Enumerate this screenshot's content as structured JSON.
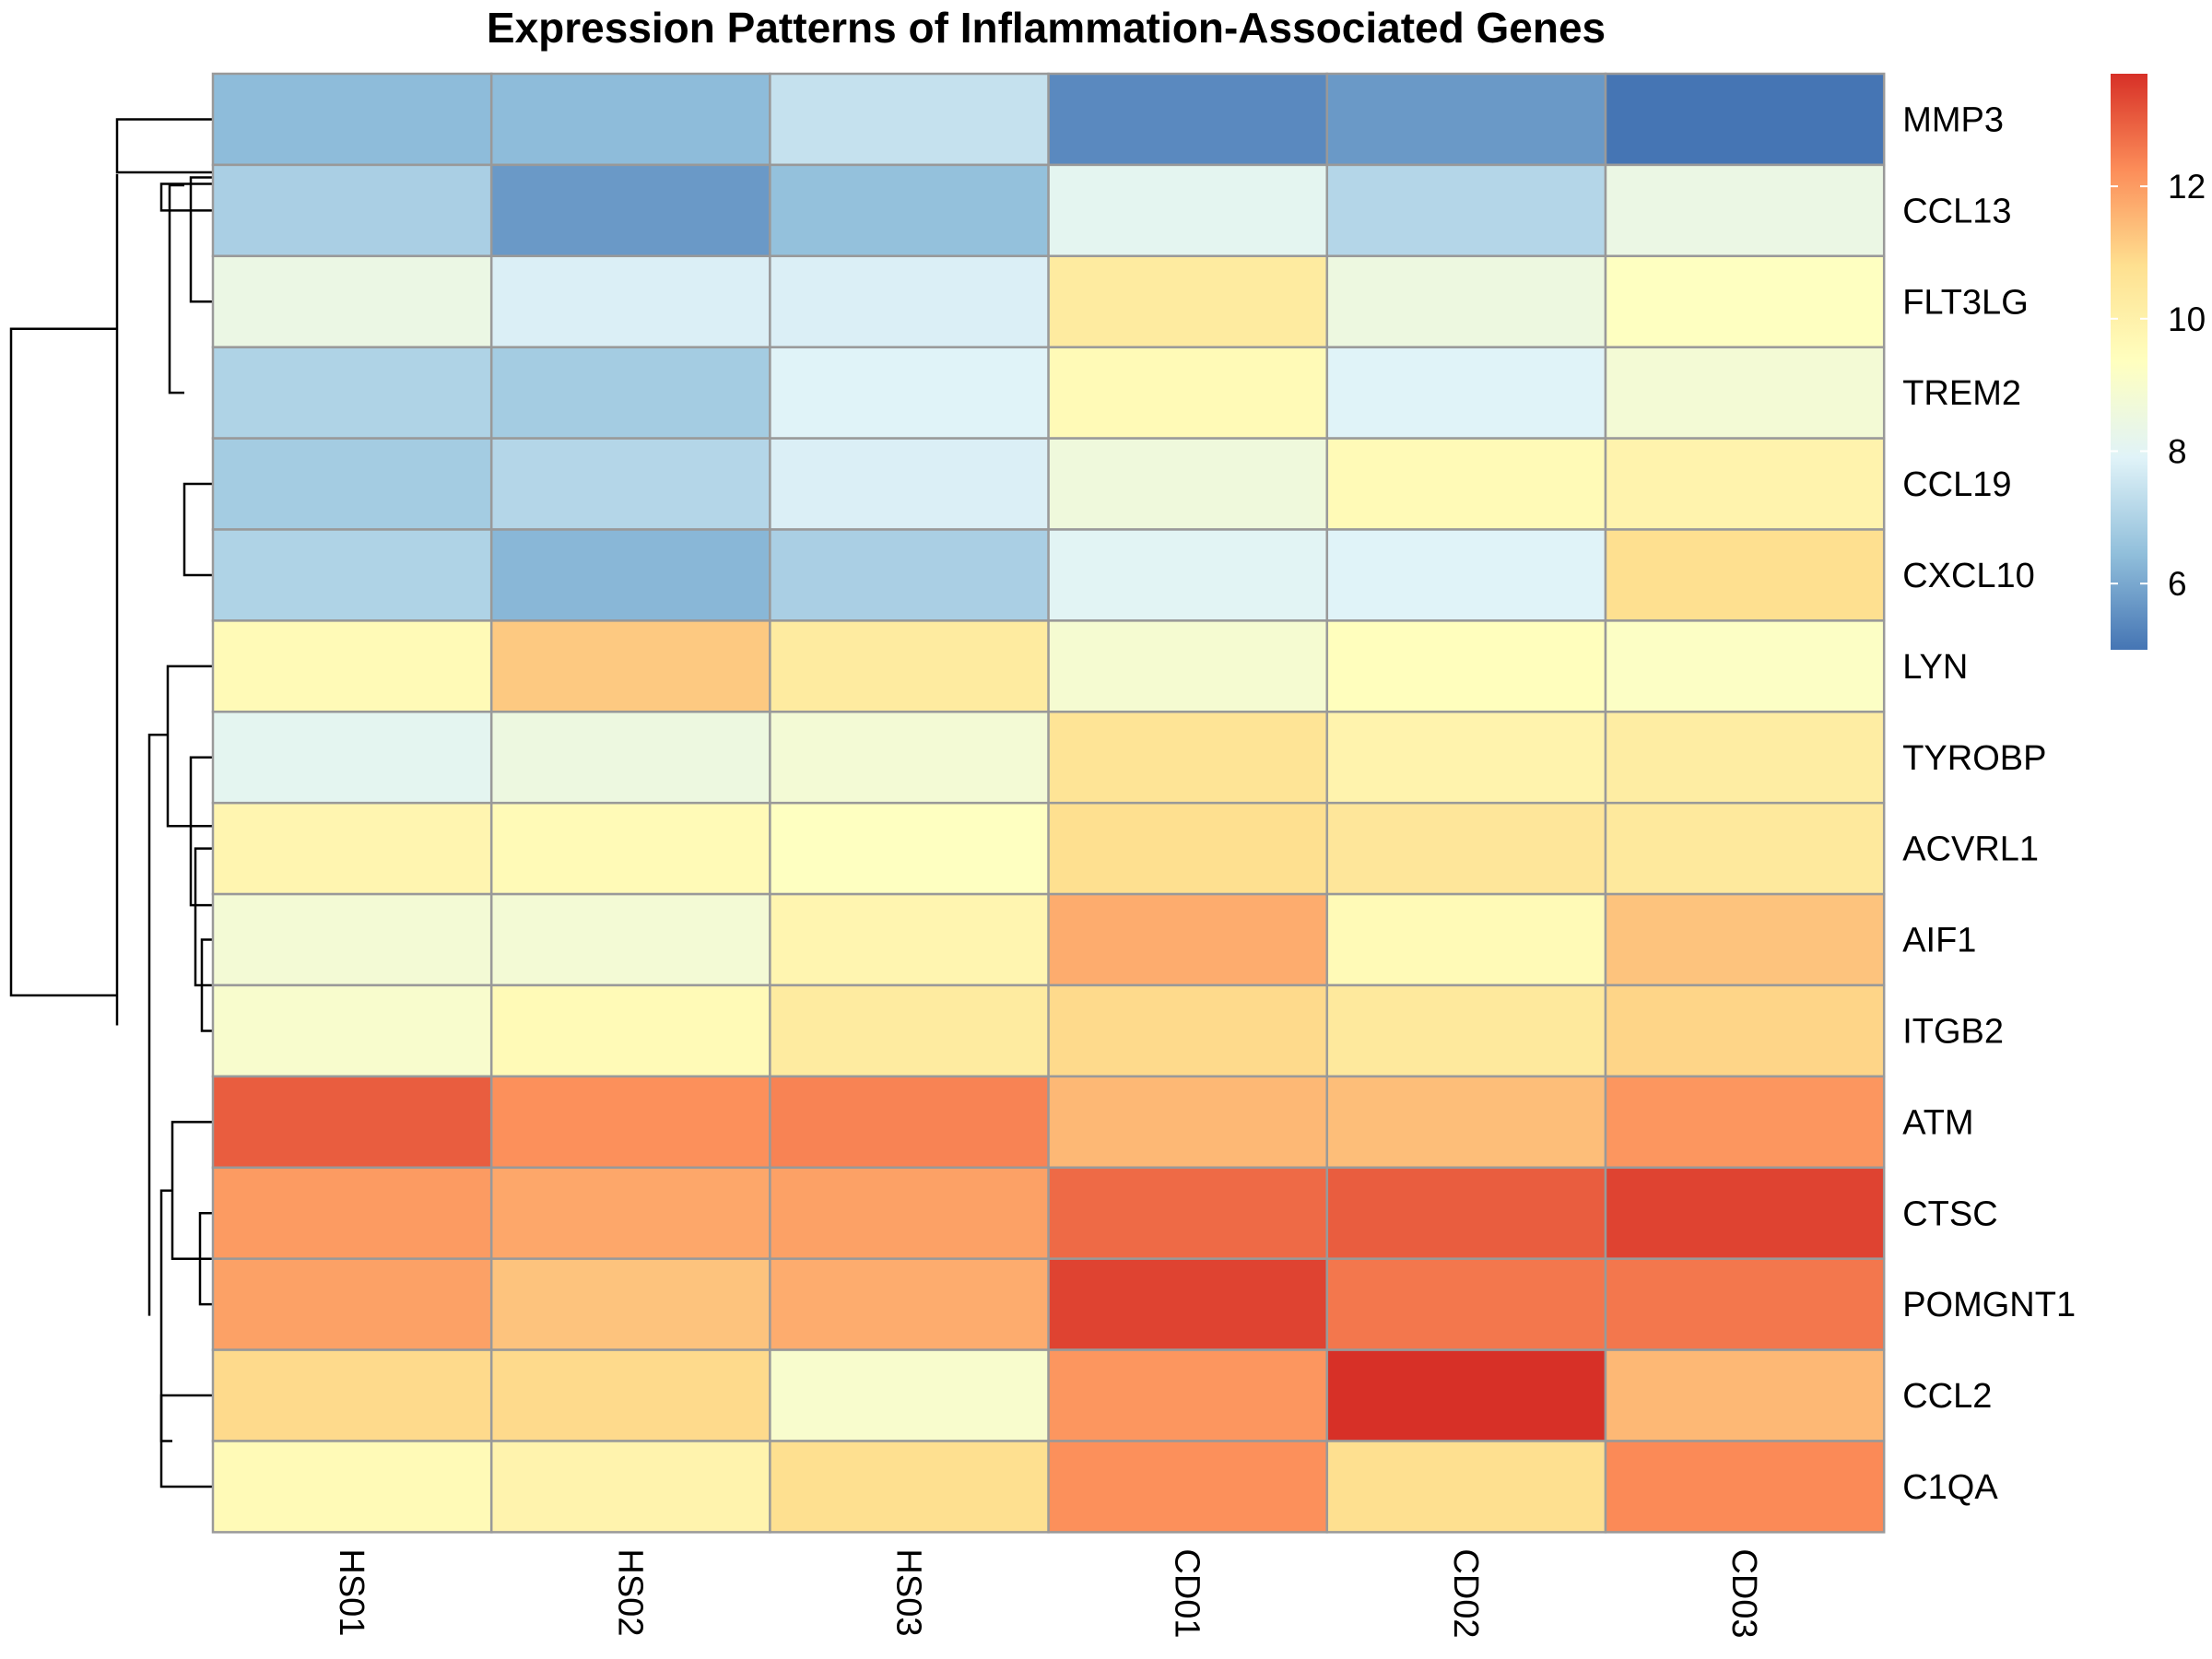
{
  "chart_data": {
    "type": "heatmap",
    "title": "Expression Patterns of Inflammation-Associated Genes",
    "rows": [
      "MMP3",
      "CCL13",
      "FLT3LG",
      "TREM2",
      "CCL19",
      "CXCL10",
      "LYN",
      "TYROBP",
      "ACVRL1",
      "AIF1",
      "ITGB2",
      "ATM",
      "CTSC",
      "POMGNT1",
      "CCL2",
      "C1QA"
    ],
    "columns": [
      "HS01",
      "HS02",
      "HS03",
      "CD01",
      "CD02",
      "CD03"
    ],
    "values": [
      [
        6.4,
        6.4,
        7.4,
        5.4,
        5.7,
        5.0
      ],
      [
        6.9,
        5.7,
        6.5,
        8.1,
        7.1,
        8.4
      ],
      [
        8.4,
        7.8,
        7.8,
        10.3,
        8.5,
        9.3
      ],
      [
        7.0,
        6.8,
        7.9,
        9.6,
        7.9,
        8.8
      ],
      [
        6.8,
        7.1,
        7.8,
        8.6,
        9.6,
        9.9
      ],
      [
        7.0,
        6.3,
        6.9,
        8.0,
        7.9,
        10.8
      ],
      [
        9.6,
        11.2,
        10.3,
        8.9,
        9.4,
        9.2
      ],
      [
        8.1,
        8.5,
        8.8,
        10.6,
        9.9,
        10.2
      ],
      [
        9.8,
        9.6,
        9.3,
        10.8,
        10.5,
        10.4
      ],
      [
        8.8,
        8.8,
        9.8,
        11.7,
        9.6,
        11.3
      ],
      [
        9.0,
        9.6,
        10.3,
        10.9,
        10.4,
        11.0
      ],
      [
        13.0,
        12.2,
        12.4,
        11.5,
        11.4,
        12.1
      ],
      [
        12.0,
        11.8,
        11.9,
        12.8,
        13.0,
        13.4
      ],
      [
        11.9,
        11.3,
        11.7,
        13.4,
        12.6,
        12.6
      ],
      [
        10.9,
        10.9,
        9.0,
        12.1,
        13.7,
        11.5
      ],
      [
        9.6,
        9.9,
        10.8,
        12.2,
        10.8,
        12.3
      ]
    ],
    "colorbar": {
      "ticks": [
        6,
        8,
        10,
        12
      ],
      "range": [
        5.0,
        13.7
      ],
      "colors": [
        "#4575B4",
        "#91BFDB",
        "#E0F3F8",
        "#FFFFBF",
        "#FEE090",
        "#FC8D59",
        "#D73027"
      ]
    },
    "grid_color": "#999999",
    "dendrogram": "rows",
    "legend_position": "right"
  }
}
